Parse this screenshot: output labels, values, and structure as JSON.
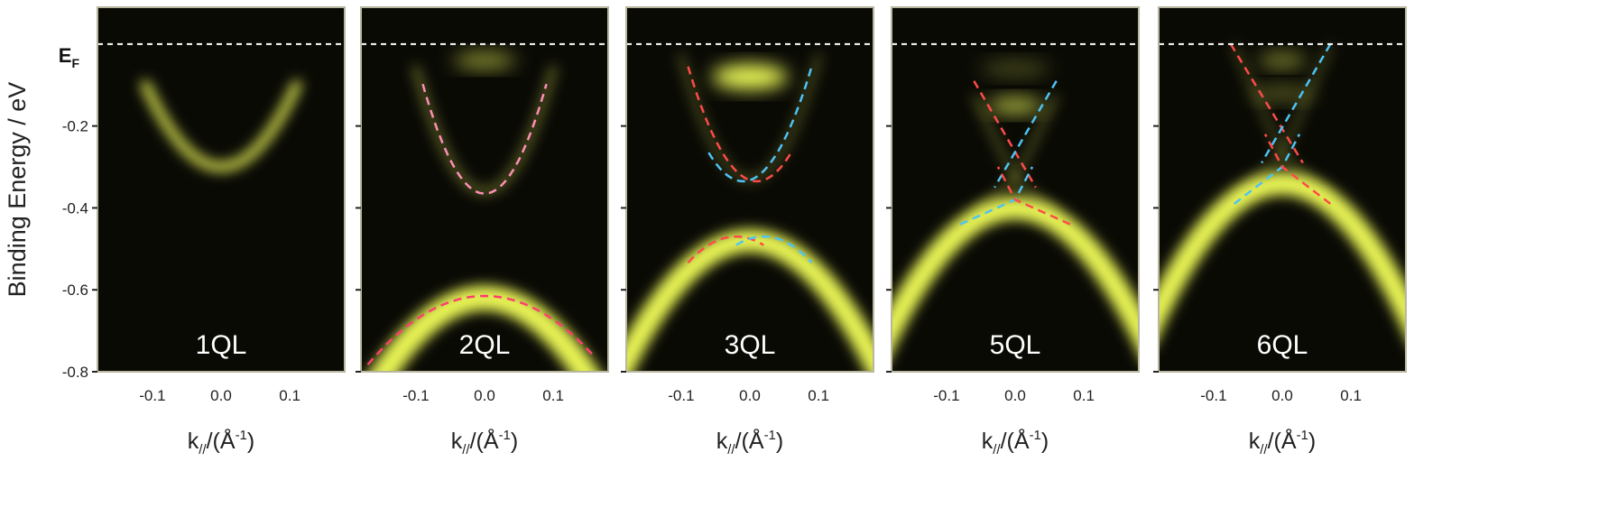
{
  "chart_data": {
    "type": "heatmap",
    "ylabel": "Binding Energy / eV",
    "fermi_label": "E",
    "fermi_label_sub": "F",
    "xlabel": "k// / (Å⁻¹)",
    "xlabel_main": "k",
    "xlabel_sub": "//",
    "xlabel_rest": "/(Å",
    "xlabel_sup": "-1",
    "xlabel_end": ")",
    "ylim": [
      -0.8,
      0.09
    ],
    "xlim": [
      -0.18,
      0.18
    ],
    "y_ticks": [
      -0.2,
      -0.4,
      -0.6,
      -0.8
    ],
    "y_tick_labels": [
      "-0.2",
      "-0.4",
      "-0.6",
      "-0.8"
    ],
    "x_ticks": [
      -0.1,
      0.0,
      0.1
    ],
    "x_tick_labels": [
      "-0.1",
      "0.0",
      "0.1"
    ],
    "fermi_level": 0.0,
    "colors": {
      "background": "#0a0a05",
      "intensity": "#f2ff5a",
      "guide_red": "#ff4a4a",
      "guide_blue": "#4ec3f5",
      "guide_pink": "#ff8fb5",
      "guide_magenta": "#ff3f6f",
      "fermi_line": "#ffffff"
    },
    "panels": [
      {
        "label": "1QL",
        "bands": [
          {
            "type": "parabola",
            "vertex_k": 0.0,
            "vertex_e": -0.3,
            "curv": 16.5,
            "kmax": 0.11,
            "width": 11,
            "opacity": 0.85
          }
        ],
        "guides": []
      },
      {
        "label": "2QL",
        "bands": [
          {
            "type": "parabola",
            "vertex_k": 0.0,
            "vertex_e": -0.36,
            "curv": 30,
            "kmax": 0.1,
            "width": 7,
            "opacity": 0.45
          },
          {
            "type": "blob",
            "k": 0.0,
            "e": -0.04,
            "rk": 0.045,
            "re": 0.02,
            "opacity": 0.55
          },
          {
            "type": "parabola",
            "vertex_k": 0.0,
            "vertex_e": -0.62,
            "curv": -8.5,
            "kmax": 0.19,
            "width": 28,
            "opacity": 0.95
          }
        ],
        "guides": [
          {
            "color": "#ff8fb5",
            "vertex_k": 0.0,
            "vertex_e": -0.365,
            "curv": 33,
            "kmin": -0.09,
            "kmax": 0.09
          },
          {
            "color": "#ff3f6f",
            "vertex_k": 0.0,
            "vertex_e": -0.615,
            "curv": -5.8,
            "kmin": -0.17,
            "kmax": 0.16
          }
        ]
      },
      {
        "label": "3QL",
        "bands": [
          {
            "type": "blob",
            "k": 0.0,
            "e": -0.08,
            "rk": 0.055,
            "re": 0.03,
            "opacity": 1.0
          },
          {
            "type": "parabola",
            "vertex_k": 0.0,
            "vertex_e": -0.33,
            "curv": 30,
            "kmax": 0.1,
            "width": 6,
            "opacity": 0.35
          },
          {
            "type": "parabola",
            "vertex_k": 0.0,
            "vertex_e": -0.48,
            "curv": -9,
            "kmax": 0.2,
            "width": 26,
            "opacity": 0.95
          }
        ],
        "guides": [
          {
            "color": "#ff4a4a",
            "vertex_k": 0.01,
            "vertex_e": -0.335,
            "curv": 28,
            "kmin": -0.09,
            "kmax": 0.06
          },
          {
            "color": "#4ec3f5",
            "vertex_k": -0.01,
            "vertex_e": -0.335,
            "curv": 28,
            "kmin": -0.06,
            "kmax": 0.09
          },
          {
            "color": "#ff4a4a",
            "vertex_k": -0.02,
            "vertex_e": -0.47,
            "curv": -13,
            "kmin": -0.09,
            "kmax": 0.02
          },
          {
            "color": "#4ec3f5",
            "vertex_k": 0.02,
            "vertex_e": -0.47,
            "curv": -13,
            "kmin": -0.02,
            "kmax": 0.09
          }
        ]
      },
      {
        "label": "5QL",
        "bands": [
          {
            "type": "blob",
            "k": 0.0,
            "e": -0.15,
            "rk": 0.04,
            "re": 0.02,
            "opacity": 0.7
          },
          {
            "type": "blob",
            "k": 0.0,
            "e": -0.06,
            "rk": 0.05,
            "re": 0.02,
            "opacity": 0.25
          },
          {
            "type": "dirac",
            "k0": 0.0,
            "e0": -0.33,
            "slope": 3.4,
            "kmax": 0.06,
            "width": 5,
            "opacity": 0.4
          },
          {
            "type": "parabola",
            "vertex_k": 0.0,
            "vertex_e": -0.4,
            "curv": -9,
            "kmax": 0.2,
            "width": 26,
            "opacity": 0.95
          }
        ],
        "guides": [
          {
            "color": "#ff4a4a",
            "line": [
              [
                -0.06,
                -0.09
              ],
              [
                0.03,
                -0.35
              ]
            ]
          },
          {
            "color": "#4ec3f5",
            "line": [
              [
                0.06,
                -0.09
              ],
              [
                -0.03,
                -0.35
              ]
            ]
          },
          {
            "color": "#4ec3f5",
            "line": [
              [
                -0.08,
                -0.44
              ],
              [
                0.0,
                -0.38
              ],
              [
                0.025,
                -0.3
              ]
            ]
          },
          {
            "color": "#ff4a4a",
            "line": [
              [
                0.08,
                -0.44
              ],
              [
                0.0,
                -0.38
              ],
              [
                -0.025,
                -0.3
              ]
            ]
          }
        ]
      },
      {
        "label": "6QL",
        "bands": [
          {
            "type": "blob",
            "k": 0.0,
            "e": -0.04,
            "rk": 0.035,
            "re": 0.018,
            "opacity": 0.5
          },
          {
            "type": "blob",
            "k": 0.0,
            "e": -0.12,
            "rk": 0.045,
            "re": 0.02,
            "opacity": 0.3
          },
          {
            "type": "dirac",
            "k0": 0.0,
            "e0": -0.27,
            "slope": 3.8,
            "kmax": 0.07,
            "width": 5,
            "opacity": 0.35
          },
          {
            "type": "parabola",
            "vertex_k": 0.0,
            "vertex_e": -0.34,
            "curv": -9.5,
            "kmax": 0.2,
            "width": 26,
            "opacity": 0.95
          }
        ],
        "guides": [
          {
            "color": "#ff4a4a",
            "line": [
              [
                -0.075,
                0.0
              ],
              [
                0.03,
                -0.29
              ]
            ]
          },
          {
            "color": "#4ec3f5",
            "line": [
              [
                0.07,
                0.0
              ],
              [
                -0.03,
                -0.29
              ]
            ]
          },
          {
            "color": "#4ec3f5",
            "line": [
              [
                -0.07,
                -0.39
              ],
              [
                0.0,
                -0.3
              ],
              [
                0.025,
                -0.22
              ]
            ]
          },
          {
            "color": "#ff4a4a",
            "line": [
              [
                0.07,
                -0.39
              ],
              [
                0.0,
                -0.3
              ],
              [
                -0.025,
                -0.22
              ]
            ]
          }
        ]
      }
    ]
  }
}
